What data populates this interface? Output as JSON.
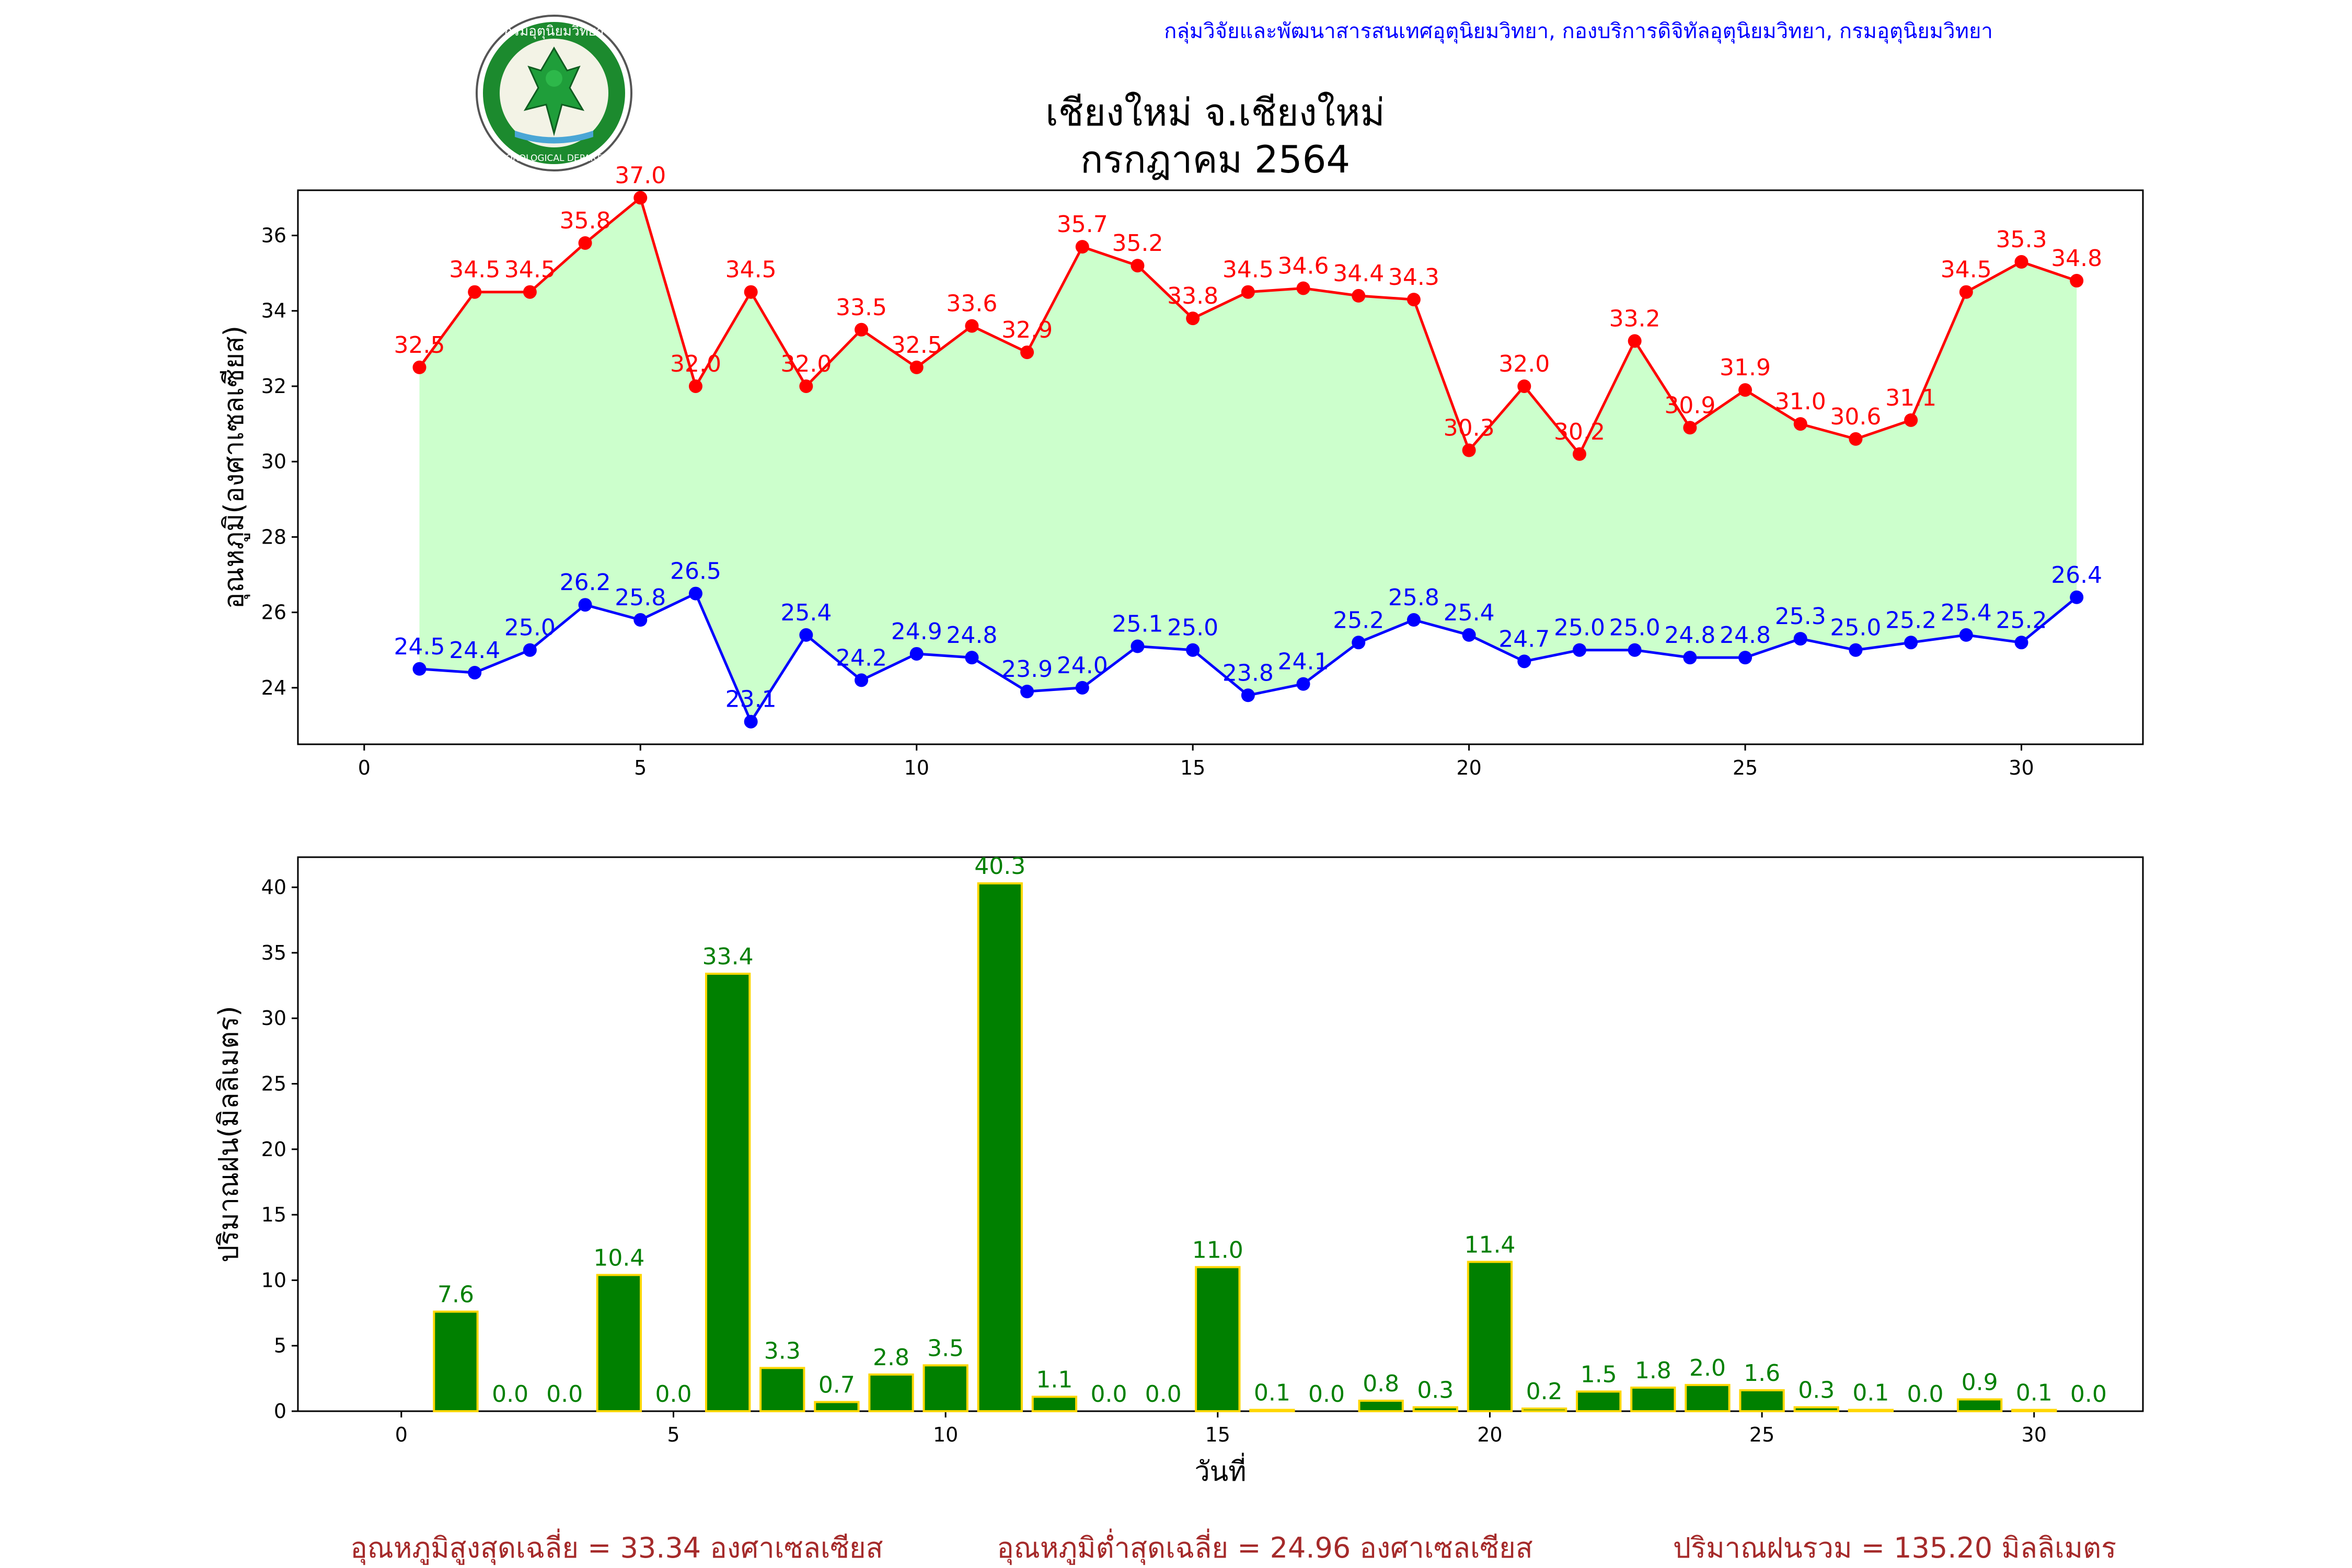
{
  "header": {
    "agency_line": "กลุ่มวิจัยและพัฒนาสารสนเทศอุตุนิยมวิทยา, กองบริการดิจิทัลอุตุนิยมวิทยา, กรมอุตุนิยมวิทยา",
    "title_line1": "เชียงใหม่ จ.เชียงใหม่",
    "title_line2": "กรกฎาคม 2564",
    "logo_text_top": "กรมอุตุนิยมวิทยา",
    "logo_text_bottom": "METEOROLOGICAL DEPARTMENT"
  },
  "colors": {
    "max_line": "#ff0000",
    "min_line": "#0000ff",
    "band_fill": "#ccffcc",
    "bar_fill": "#008000",
    "bar_edge": "#ffd700",
    "footer_text": "#a52a2a"
  },
  "chart_data": [
    {
      "type": "line",
      "title": "",
      "xlabel": "",
      "ylabel": "อุณหภูมิ(องศาเซลเซียส)",
      "xlim": [
        -1.2,
        32.2
      ],
      "ylim": [
        22.5,
        37.2
      ],
      "xticks": [
        0,
        5,
        10,
        15,
        20,
        25,
        30
      ],
      "yticks": [
        24,
        26,
        28,
        30,
        32,
        34,
        36
      ],
      "fill_between": true,
      "x": [
        1,
        2,
        3,
        4,
        5,
        6,
        7,
        8,
        9,
        10,
        11,
        12,
        13,
        14,
        15,
        16,
        17,
        18,
        19,
        20,
        21,
        22,
        23,
        24,
        25,
        26,
        27,
        28,
        29,
        30,
        31
      ],
      "series": [
        {
          "values": [
            32.5,
            34.5,
            34.5,
            35.8,
            37.0,
            32.0,
            34.5,
            32.0,
            33.5,
            32.5,
            33.6,
            32.9,
            35.7,
            35.2,
            33.8,
            34.5,
            34.6,
            34.4,
            34.3,
            30.3,
            32.0,
            30.2,
            33.2,
            30.9,
            31.9,
            31.0,
            30.6,
            31.1,
            34.5,
            35.3,
            34.8
          ],
          "color": "#ff0000"
        },
        {
          "values": [
            24.5,
            24.4,
            25.0,
            26.2,
            25.8,
            26.5,
            23.1,
            25.4,
            24.2,
            24.9,
            24.8,
            23.9,
            24.0,
            25.1,
            25.0,
            23.8,
            24.1,
            25.2,
            25.8,
            25.4,
            24.7,
            25.0,
            25.0,
            24.8,
            24.8,
            25.3,
            25.0,
            25.2,
            25.4,
            25.2,
            26.4
          ],
          "color": "#0000ff"
        }
      ]
    },
    {
      "type": "bar",
      "title": "",
      "xlabel": "วันที่",
      "ylabel": "ปริมาณฝน(มิลลิเมตร)",
      "xlim": [
        -1.9,
        32.0
      ],
      "ylim": [
        0,
        42.3
      ],
      "xticks": [
        0,
        5,
        10,
        15,
        20,
        25,
        30
      ],
      "yticks": [
        0,
        5,
        10,
        15,
        20,
        25,
        30,
        35,
        40
      ],
      "x": [
        1,
        2,
        3,
        4,
        5,
        6,
        7,
        8,
        9,
        10,
        11,
        12,
        13,
        14,
        15,
        16,
        17,
        18,
        19,
        20,
        21,
        22,
        23,
        24,
        25,
        26,
        27,
        28,
        29,
        30,
        31
      ],
      "values": [
        7.6,
        0.0,
        0.0,
        10.4,
        0.0,
        33.4,
        3.3,
        0.7,
        2.8,
        3.5,
        40.3,
        1.1,
        0.0,
        0.0,
        11.0,
        0.1,
        0.0,
        0.8,
        0.3,
        11.4,
        0.2,
        1.5,
        1.8,
        2.0,
        1.6,
        0.3,
        0.1,
        0.0,
        0.9,
        0.1,
        0.0
      ],
      "labels": [
        "7.6",
        "0.0",
        "0.0",
        "10.4",
        "0.0",
        "33.4",
        "3.3",
        "0.7",
        "2.8",
        "3.5",
        "40.3",
        "1.1",
        "0.0",
        "0.0",
        "11.0",
        "0.1",
        "0.0",
        "0.8",
        "0.3",
        "11.4",
        "0.2",
        "1.5",
        "1.8",
        "2.0",
        "1.6",
        "0.3",
        "0.1",
        "0.0",
        "0.9",
        "0.1",
        "0.0"
      ]
    }
  ],
  "footer": {
    "avg_max": "อุณหภูมิสูงสุดเฉลี่ย = 33.34 องศาเซลเซียส",
    "avg_min": "อุณหภูมิต่ำสุดเฉลี่ย = 24.96 องศาเซลเซียส",
    "total_rain": "ปริมาณฝนรวม = 135.20 มิลลิเมตร"
  }
}
